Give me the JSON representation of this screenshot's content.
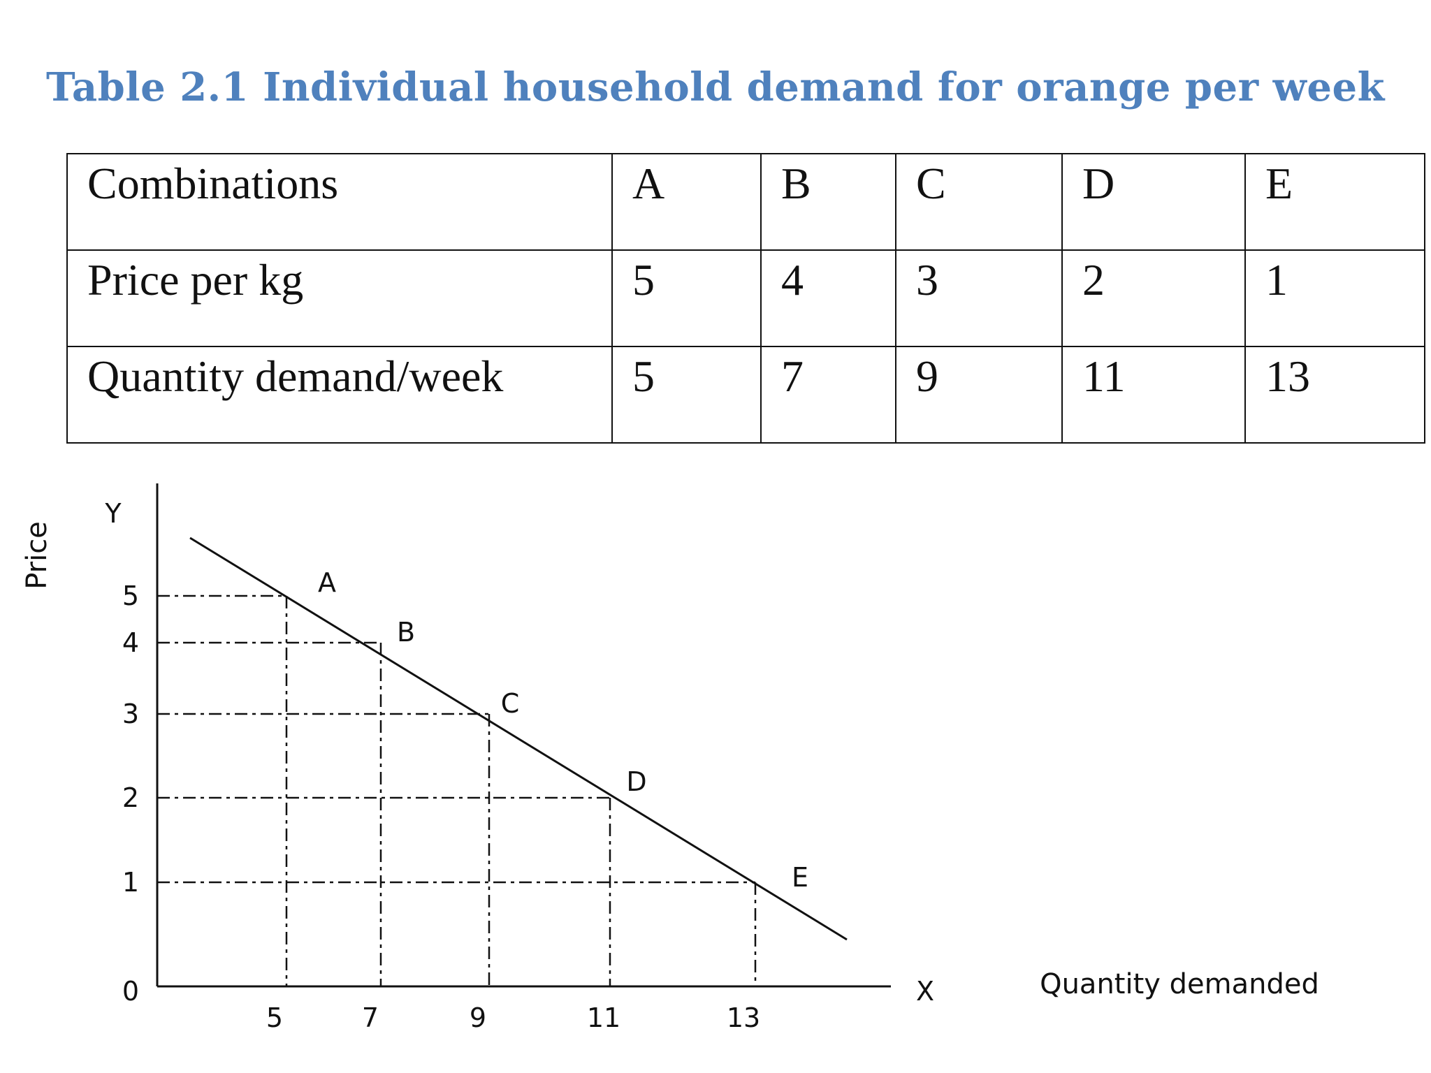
{
  "colors": {
    "caption": "#4f81bd",
    "ink": "#111111"
  },
  "table": {
    "caption": "Table 2.1 Individual household demand for orange per week",
    "rows": [
      {
        "label": "Combinations",
        "cells": [
          "A",
          "B",
          "C",
          "D",
          "E"
        ]
      },
      {
        "label": "Price per kg",
        "cells": [
          "5",
          "4",
          "3",
          "2",
          "1"
        ]
      },
      {
        "label": "Quantity demand/week",
        "cells": [
          "5",
          "7",
          "9",
          "11",
          "13"
        ]
      }
    ]
  },
  "chart_data": {
    "type": "line",
    "title": "",
    "xlabel": "Quantity demanded",
    "ylabel": "Price",
    "x_axis_letter": "X",
    "y_axis_letter": "Y",
    "origin_label": "0",
    "xlim": [
      0,
      14.5
    ],
    "ylim": [
      0,
      6
    ],
    "x_ticks": [
      5,
      7,
      9,
      11,
      13
    ],
    "y_ticks": [
      1,
      2,
      3,
      4,
      5
    ],
    "grid": false,
    "series": [
      {
        "points": [
          {
            "label": "A",
            "x": 5,
            "y": 5
          },
          {
            "label": "B",
            "x": 7,
            "y": 4
          },
          {
            "label": "C",
            "x": 9,
            "y": 3
          },
          {
            "label": "D",
            "x": 11,
            "y": 2
          },
          {
            "label": "E",
            "x": 13,
            "y": 1
          }
        ]
      }
    ],
    "demand_line": {
      "x_start": 2.3,
      "y_start": 5.7,
      "x_end": 14.1,
      "y_end": 0.5
    },
    "guide_lines": "dash-dot"
  }
}
